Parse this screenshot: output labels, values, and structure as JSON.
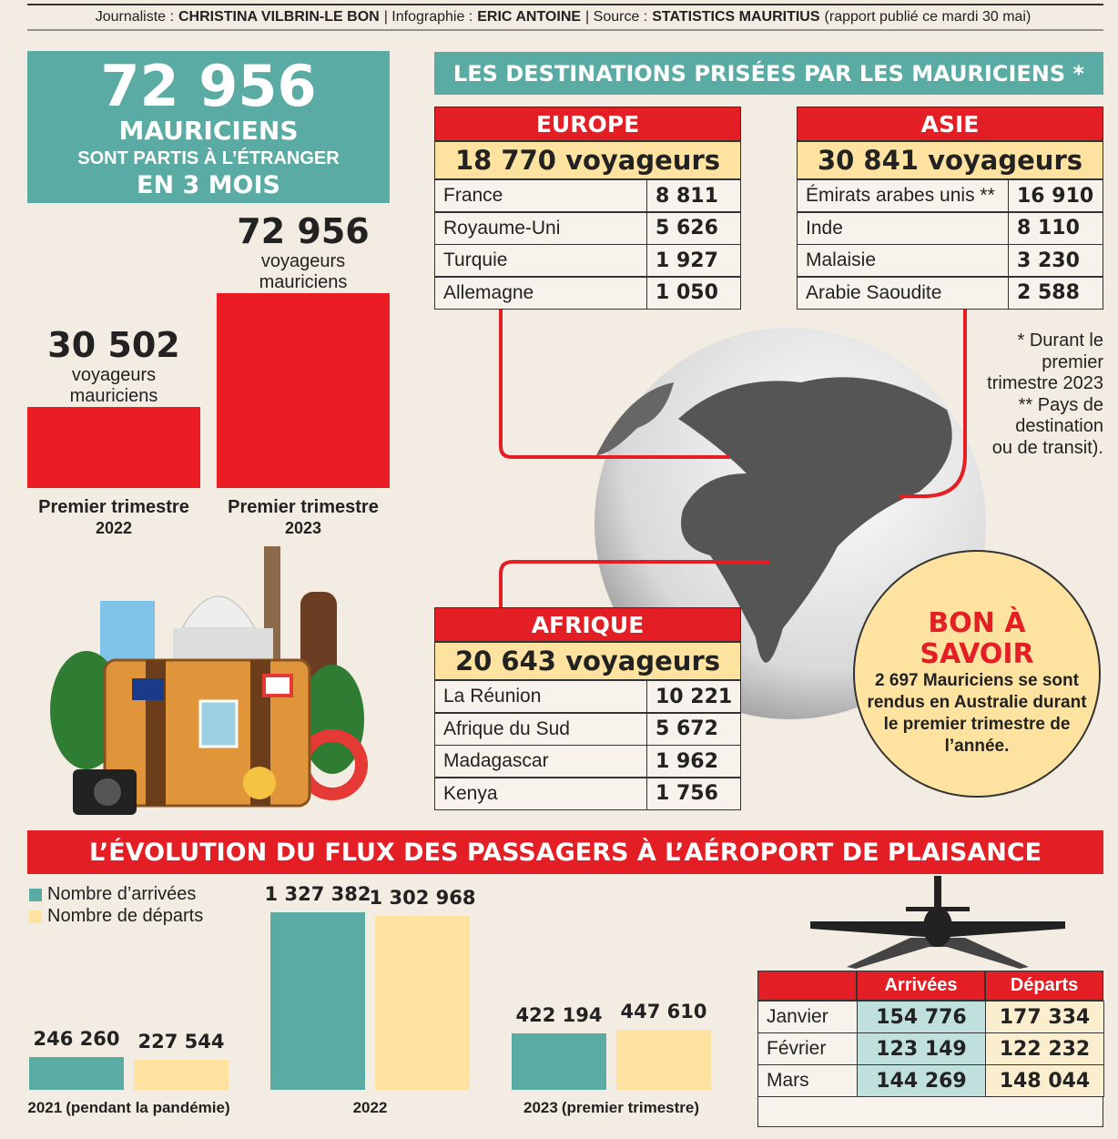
{
  "credits": [
    {
      "text": "Journaliste :",
      "bold": false
    },
    {
      "text": "CHRISTINA VILBRIN-LE BON",
      "bold": true
    },
    {
      "text": "| Infographie :",
      "bold": false
    },
    {
      "text": "ERIC ANTOINE",
      "bold": true
    },
    {
      "text": "| Source :",
      "bold": false
    },
    {
      "text": "STATISTICS MAURITIUS",
      "bold": true
    },
    {
      "text": "(rapport publié ce mardi 30 mai)",
      "bold": false
    }
  ],
  "headline": {
    "number": "72 956",
    "line1": "MAURICIENS",
    "line2": "SONT PARTIS À L’ÉTRANGER",
    "line3": "EN 3 MOIS"
  },
  "trips": {
    "type": "bar",
    "color": "#ec1c24",
    "bars": [
      {
        "value": 30502,
        "label": "30 502",
        "unit": "voyageurs mauriciens",
        "category": [
          "Premier trimestre",
          "2022"
        ]
      },
      {
        "value": 72956,
        "label": "72 956",
        "unit": "voyageurs mauriciens",
        "category": [
          "Premier trimestre",
          "2023"
        ]
      }
    ]
  },
  "destinations": {
    "title": "LES DESTINATIONS PRISÉES PAR LES MAURICIENS *",
    "regions": [
      {
        "name": "EUROPE",
        "total": "18 770 voyageurs",
        "rows": [
          [
            "France",
            "8 811"
          ],
          [
            "Royaume-Uni",
            "5 626"
          ],
          [
            "Turquie",
            "1 927"
          ],
          [
            "Allemagne",
            "1 050"
          ]
        ]
      },
      {
        "name": "ASIE",
        "total": "30 841 voyageurs",
        "rows": [
          [
            "Émirats arabes unis **",
            "16 910"
          ],
          [
            "Inde",
            "8 110"
          ],
          [
            "Malaisie",
            "3 230"
          ],
          [
            "Arabie Saoudite",
            "2 588"
          ]
        ]
      },
      {
        "name": "AFRIQUE",
        "total": "20 643 voyageurs",
        "rows": [
          [
            "La Réunion",
            "10 221"
          ],
          [
            "Afrique du Sud",
            "5 672"
          ],
          [
            "Madagascar",
            "1 962"
          ],
          [
            "Kenya",
            "1 756"
          ]
        ]
      }
    ],
    "notes": [
      "* Durant le",
      "premier",
      "trimestre 2023",
      "** Pays de",
      "destination",
      "ou de transit)."
    ]
  },
  "bon_a_savoir": {
    "title": [
      "BON À",
      "SAVOIR"
    ],
    "text": "2 697 Mauriciens se sont rendus en Australie durant le premier trimestre de l’année."
  },
  "flux": {
    "title": "L’ÉVOLUTION DU FLUX DES PASSAGERS À L’AÉROPORT DE PLAISANCE",
    "categories": [
      [
        "2021",
        "(pendant la pandémie)"
      ],
      [
        "2022"
      ],
      [
        "2023",
        "(premier trimestre)"
      ]
    ],
    "series": [
      {
        "name": "Nombre d’arrivées",
        "color": "#5aaba3",
        "values": [
          246260,
          1327382,
          422194
        ],
        "value_labels": [
          "246 260",
          "1 327 382",
          "422 194"
        ]
      },
      {
        "name": "Nombre de départs",
        "color": "#fde2a0",
        "values": [
          227544,
          1302968,
          447610
        ],
        "value_labels": [
          "227 544",
          "1 302 968",
          "447 610"
        ]
      }
    ]
  },
  "monthly": {
    "headers": [
      "Arrivées",
      "Départs"
    ],
    "rows": [
      [
        "Janvier",
        "154 776",
        "177 334"
      ],
      [
        "Février",
        "123 149",
        "122 232"
      ],
      [
        "Mars",
        "144 269",
        "148 044"
      ]
    ]
  }
}
